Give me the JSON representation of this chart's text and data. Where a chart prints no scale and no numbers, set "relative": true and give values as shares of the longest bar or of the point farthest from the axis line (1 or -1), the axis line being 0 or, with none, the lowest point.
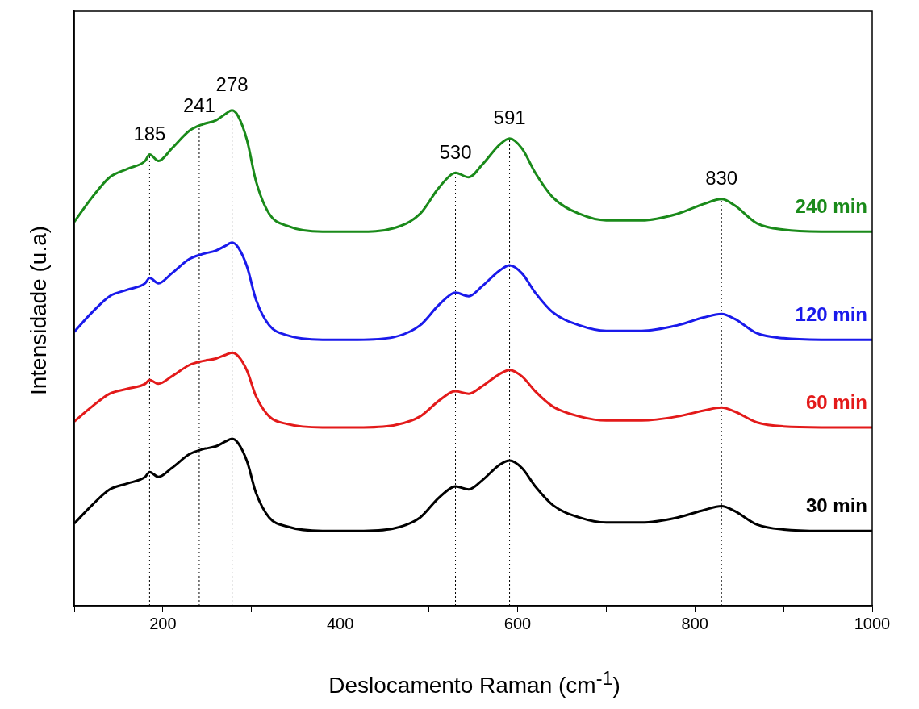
{
  "chart_data": {
    "type": "line",
    "relative": true,
    "xlabel": "Deslocamento Raman (cm$^{-1}$)",
    "ylabel": "Intensidade (u.a)",
    "x": [
      100,
      120,
      140,
      160,
      180,
      185,
      195,
      210,
      230,
      245,
      260,
      270,
      278,
      285,
      295,
      305,
      320,
      340,
      380,
      420,
      460,
      490,
      510,
      525,
      530,
      545,
      560,
      580,
      591,
      605,
      620,
      640,
      670,
      700,
      740,
      780,
      810,
      830,
      845,
      870,
      900,
      950,
      1000
    ],
    "xlim": [
      100,
      1000
    ],
    "xticks": [
      {
        "value": 100,
        "label": null
      },
      200,
      {
        "value": 300,
        "label": null
      },
      400,
      {
        "value": 500,
        "label": null
      },
      600,
      {
        "value": 700,
        "label": null
      },
      800,
      {
        "value": 900,
        "label": null
      },
      1000
    ],
    "series": [
      {
        "name": "240 min",
        "color": "#1a8a1a",
        "values": [
          0.775,
          0.824,
          0.865,
          0.882,
          0.898,
          0.911,
          0.898,
          0.923,
          0.959,
          0.972,
          0.98,
          0.992,
          1.0,
          0.988,
          0.939,
          0.857,
          0.791,
          0.767,
          0.755,
          0.755,
          0.762,
          0.791,
          0.841,
          0.87,
          0.874,
          0.865,
          0.89,
          0.931,
          0.943,
          0.923,
          0.874,
          0.824,
          0.791,
          0.778,
          0.778,
          0.791,
          0.811,
          0.821,
          0.808,
          0.772,
          0.759,
          0.755,
          0.755
        ]
      },
      {
        "name": "120 min",
        "color": "#1a1aeb",
        "values": [
          0.553,
          0.592,
          0.625,
          0.638,
          0.651,
          0.662,
          0.651,
          0.671,
          0.7,
          0.71,
          0.717,
          0.726,
          0.733,
          0.723,
          0.684,
          0.618,
          0.566,
          0.546,
          0.537,
          0.537,
          0.542,
          0.566,
          0.605,
          0.629,
          0.632,
          0.625,
          0.645,
          0.677,
          0.687,
          0.671,
          0.632,
          0.592,
          0.566,
          0.555,
          0.555,
          0.566,
          0.582,
          0.589,
          0.579,
          0.55,
          0.54,
          0.537,
          0.537
        ]
      },
      {
        "name": "60 min",
        "color": "#e31a1a",
        "values": [
          0.372,
          0.402,
          0.428,
          0.438,
          0.448,
          0.456,
          0.448,
          0.463,
          0.486,
          0.494,
          0.499,
          0.506,
          0.511,
          0.504,
          0.474,
          0.423,
          0.382,
          0.367,
          0.36,
          0.36,
          0.364,
          0.382,
          0.412,
          0.431,
          0.433,
          0.428,
          0.443,
          0.468,
          0.476,
          0.463,
          0.433,
          0.402,
          0.382,
          0.374,
          0.374,
          0.382,
          0.394,
          0.4,
          0.392,
          0.37,
          0.362,
          0.36,
          0.36
        ]
      },
      {
        "name": "30 min",
        "color": "#000000",
        "values": [
          0.166,
          0.203,
          0.235,
          0.247,
          0.26,
          0.27,
          0.26,
          0.278,
          0.306,
          0.316,
          0.322,
          0.331,
          0.337,
          0.328,
          0.291,
          0.228,
          0.178,
          0.16,
          0.151,
          0.151,
          0.156,
          0.178,
          0.216,
          0.238,
          0.241,
          0.235,
          0.253,
          0.285,
          0.293,
          0.278,
          0.241,
          0.203,
          0.178,
          0.168,
          0.168,
          0.178,
          0.193,
          0.201,
          0.191,
          0.164,
          0.154,
          0.151,
          0.151
        ]
      }
    ],
    "ref_lines": [
      {
        "axis": "x",
        "value": 185,
        "label": "185",
        "color": "#000000",
        "line_style": "dotted"
      },
      {
        "axis": "x",
        "value": 241,
        "label": "241",
        "color": "#000000",
        "line_style": "dotted"
      },
      {
        "axis": "x",
        "value": 278,
        "label": "278",
        "color": "#000000",
        "line_style": "dotted"
      },
      {
        "axis": "x",
        "value": 530,
        "label": "530",
        "color": "#000000",
        "line_style": "dotted"
      },
      {
        "axis": "x",
        "value": 591,
        "label": "591",
        "color": "#000000",
        "line_style": "dotted"
      },
      {
        "axis": "x",
        "value": 830,
        "label": "830",
        "color": "#000000",
        "line_style": "dotted"
      }
    ],
    "legend": false,
    "grid": false,
    "marker": "none",
    "line_style": "solid"
  }
}
